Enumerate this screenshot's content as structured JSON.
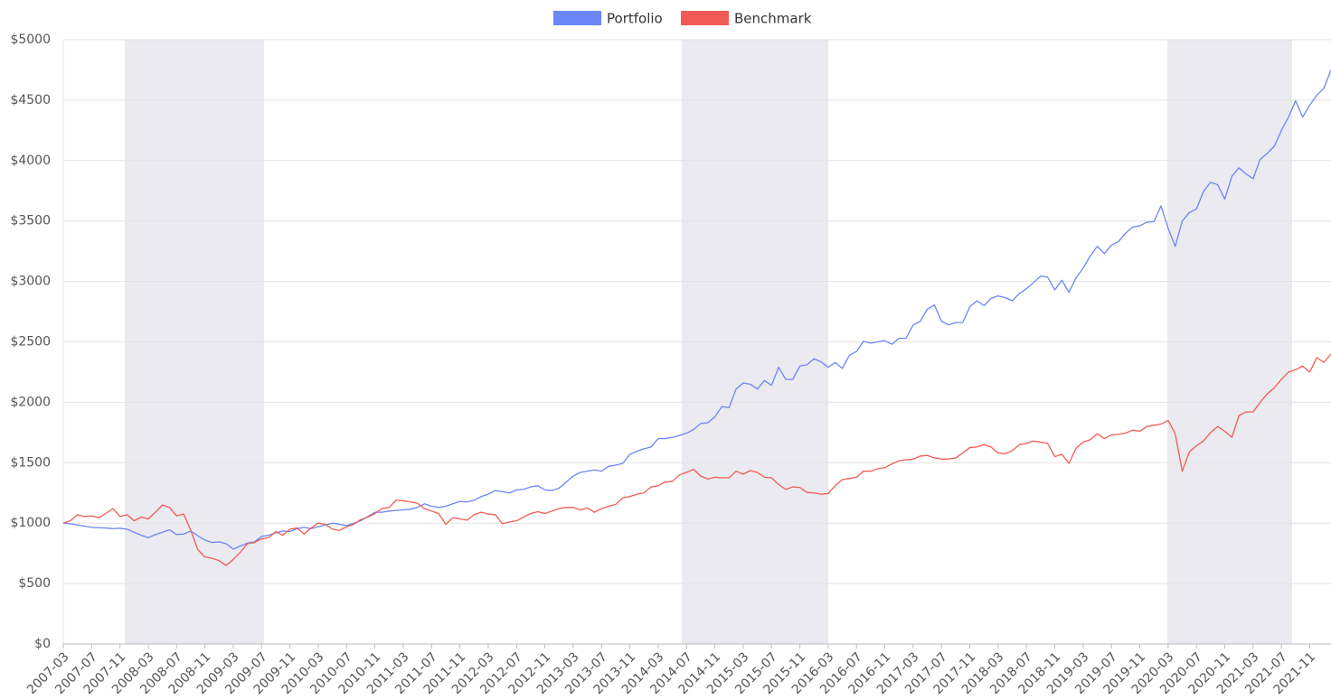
{
  "chart_data": {
    "type": "line",
    "categories": [
      "2007-03",
      null,
      null,
      null,
      "2007-07",
      null,
      null,
      null,
      "2007-11",
      null,
      null,
      null,
      "2008-03",
      null,
      null,
      null,
      "2008-07",
      null,
      null,
      null,
      "2008-11",
      null,
      null,
      null,
      "2009-03",
      null,
      null,
      null,
      "2009-07",
      null,
      null,
      null,
      "2009-11",
      null,
      null,
      null,
      "2010-03",
      null,
      null,
      null,
      "2010-07",
      null,
      null,
      null,
      "2010-11",
      null,
      null,
      null,
      "2011-03",
      null,
      null,
      null,
      "2011-07",
      null,
      null,
      null,
      "2011-11",
      null,
      null,
      null,
      "2012-03",
      null,
      null,
      null,
      "2012-07",
      null,
      null,
      null,
      "2012-11",
      null,
      null,
      null,
      "2013-03",
      null,
      null,
      null,
      "2013-07",
      null,
      null,
      null,
      "2013-11",
      null,
      null,
      null,
      "2014-03",
      null,
      null,
      null,
      "2014-07",
      null,
      null,
      null,
      "2014-11",
      null,
      null,
      null,
      "2015-03",
      null,
      null,
      null,
      "2015-07",
      null,
      null,
      null,
      "2015-11",
      null,
      null,
      null,
      "2016-03",
      null,
      null,
      null,
      "2016-07",
      null,
      null,
      null,
      "2016-11",
      null,
      null,
      null,
      "2017-03",
      null,
      null,
      null,
      "2017-07",
      null,
      null,
      null,
      "2017-11",
      null,
      null,
      null,
      "2018-03",
      null,
      null,
      null,
      "2018-07",
      null,
      null,
      null,
      "2018-11",
      null,
      null,
      null,
      "2019-03",
      null,
      null,
      null,
      "2019-07",
      null,
      null,
      null,
      "2019-11",
      null,
      null,
      null,
      "2020-03",
      null,
      null,
      null,
      "2020-07",
      null,
      null,
      null,
      "2020-11",
      null,
      null,
      null,
      "2021-03",
      null,
      null,
      null,
      "2021-07",
      null,
      null,
      null,
      "2021-11",
      null,
      null,
      null
    ],
    "series": [
      {
        "name": "Portfolio",
        "color": "#6b86f7",
        "values": [
          1000,
          995,
          985,
          975,
          965,
          962,
          960,
          955,
          958,
          950,
          925,
          900,
          880,
          905,
          925,
          945,
          905,
          910,
          935,
          895,
          860,
          840,
          845,
          830,
          785,
          810,
          835,
          845,
          890,
          900,
          920,
          935,
          930,
          955,
          965,
          955,
          970,
          985,
          1000,
          990,
          980,
          1000,
          1020,
          1055,
          1090,
          1090,
          1100,
          1105,
          1110,
          1115,
          1130,
          1160,
          1140,
          1130,
          1140,
          1160,
          1180,
          1175,
          1190,
          1220,
          1240,
          1270,
          1260,
          1250,
          1275,
          1280,
          1300,
          1310,
          1275,
          1270,
          1290,
          1340,
          1390,
          1420,
          1430,
          1440,
          1430,
          1470,
          1480,
          1495,
          1570,
          1595,
          1615,
          1630,
          1700,
          1700,
          1710,
          1725,
          1745,
          1775,
          1825,
          1830,
          1880,
          1965,
          1955,
          2110,
          2160,
          2150,
          2110,
          2180,
          2140,
          2290,
          2190,
          2190,
          2300,
          2310,
          2360,
          2335,
          2290,
          2330,
          2280,
          2390,
          2420,
          2505,
          2490,
          2500,
          2510,
          2480,
          2530,
          2530,
          2640,
          2670,
          2770,
          2805,
          2670,
          2640,
          2660,
          2660,
          2790,
          2840,
          2800,
          2860,
          2880,
          2865,
          2840,
          2900,
          2940,
          2990,
          3045,
          3035,
          2930,
          3010,
          2910,
          3030,
          3110,
          3210,
          3290,
          3230,
          3300,
          3330,
          3400,
          3450,
          3460,
          3490,
          3495,
          3625,
          3440,
          3290,
          3500,
          3570,
          3600,
          3745,
          3820,
          3800,
          3680,
          3870,
          3940,
          3890,
          3850,
          4010,
          4060,
          4120,
          4250,
          4360,
          4495,
          4360,
          4460,
          4540,
          4600,
          4750
        ]
      },
      {
        "name": "Benchmark",
        "color": "#f25b55",
        "values": [
          1000,
          1020,
          1070,
          1055,
          1060,
          1045,
          1080,
          1120,
          1055,
          1070,
          1020,
          1050,
          1035,
          1090,
          1150,
          1130,
          1060,
          1075,
          940,
          780,
          720,
          710,
          690,
          650,
          700,
          760,
          830,
          840,
          870,
          880,
          930,
          900,
          950,
          960,
          910,
          960,
          1000,
          990,
          950,
          940,
          970,
          990,
          1030,
          1050,
          1080,
          1120,
          1130,
          1190,
          1185,
          1175,
          1165,
          1120,
          1100,
          1080,
          990,
          1045,
          1035,
          1025,
          1070,
          1090,
          1075,
          1070,
          995,
          1010,
          1020,
          1050,
          1080,
          1095,
          1080,
          1100,
          1120,
          1130,
          1130,
          1110,
          1125,
          1090,
          1120,
          1140,
          1155,
          1210,
          1220,
          1240,
          1250,
          1300,
          1310,
          1340,
          1345,
          1400,
          1420,
          1445,
          1390,
          1365,
          1380,
          1375,
          1375,
          1430,
          1405,
          1435,
          1420,
          1380,
          1375,
          1320,
          1280,
          1300,
          1295,
          1255,
          1250,
          1240,
          1245,
          1310,
          1360,
          1370,
          1380,
          1430,
          1430,
          1450,
          1460,
          1490,
          1515,
          1525,
          1530,
          1555,
          1560,
          1540,
          1530,
          1530,
          1540,
          1580,
          1625,
          1630,
          1650,
          1630,
          1580,
          1575,
          1600,
          1650,
          1660,
          1680,
          1670,
          1660,
          1550,
          1570,
          1495,
          1620,
          1670,
          1690,
          1740,
          1700,
          1730,
          1735,
          1745,
          1770,
          1760,
          1800,
          1810,
          1820,
          1850,
          1740,
          1430,
          1590,
          1640,
          1680,
          1750,
          1800,
          1760,
          1710,
          1890,
          1920,
          1920,
          2000,
          2070,
          2120,
          2190,
          2250,
          2270,
          2300,
          2250,
          2370,
          2330,
          2400
        ]
      }
    ],
    "ylim": [
      0,
      5000
    ],
    "yticks": [
      {
        "value": 0,
        "label": "$0"
      },
      {
        "value": 500,
        "label": "$500"
      },
      {
        "value": 1000,
        "label": "$1000"
      },
      {
        "value": 1500,
        "label": "$1500"
      },
      {
        "value": 2000,
        "label": "$2000"
      },
      {
        "value": 2500,
        "label": "$2500"
      },
      {
        "value": 3000,
        "label": "$3000"
      },
      {
        "value": 3500,
        "label": "$3500"
      },
      {
        "value": 4000,
        "label": "$4000"
      },
      {
        "value": 4500,
        "label": "$4500"
      },
      {
        "value": 5000,
        "label": "$5000"
      }
    ],
    "grid": true,
    "legend": "top"
  }
}
